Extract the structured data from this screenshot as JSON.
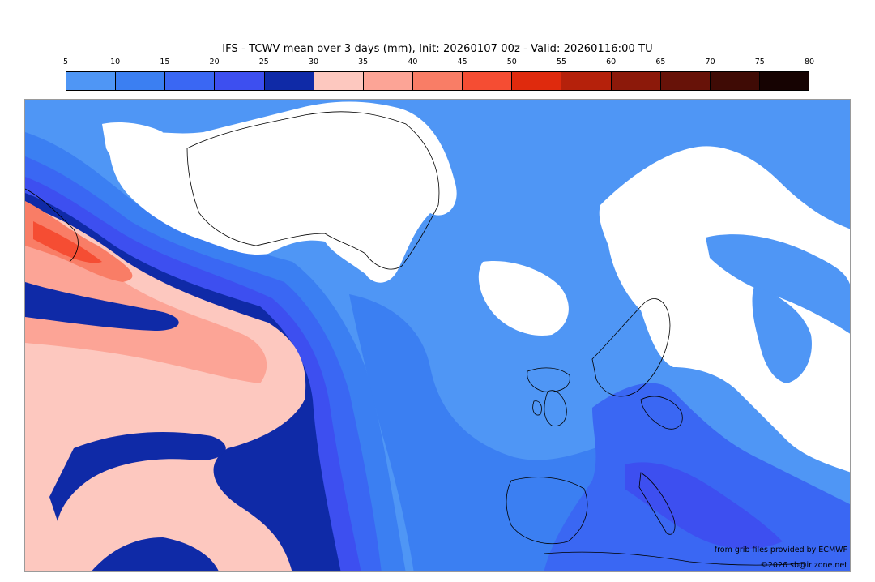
{
  "title": "IFS - TCWV mean over 3 days (mm), Init: 20260107 00z - Valid: 20260116:00 TU",
  "colorbar": {
    "ticks": [
      "5",
      "10",
      "15",
      "20",
      "25",
      "30",
      "35",
      "40",
      "45",
      "50",
      "55",
      "60",
      "65",
      "70",
      "75",
      "80"
    ],
    "colors": [
      "#4f96f5",
      "#3b7ff2",
      "#3a67f3",
      "#3d4ff0",
      "#0f2aa7",
      "#fdc8bf",
      "#fca496",
      "#f97d66",
      "#f54d33",
      "#df2a0d",
      "#b5210b",
      "#8c190a",
      "#671208",
      "#3f0b05",
      "#160302"
    ]
  },
  "map": {
    "colors": {
      "background": "#4f96f5",
      "band_10_15": "#3b7ff2",
      "band_15_20": "#3a67f3",
      "band_20_25": "#3d4ff0",
      "band_25_30": "#0f2aa7",
      "band_30_35": "#fdc8bf",
      "band_35_40": "#fca496",
      "band_40_45": "#f97d66",
      "band_45_50": "#f54d33",
      "below_range": "#ffffff",
      "coast": "#000000"
    }
  },
  "credits": {
    "source": "from grib files provided by ECMWF",
    "copyright": "©2026 sb@irizone.net"
  }
}
